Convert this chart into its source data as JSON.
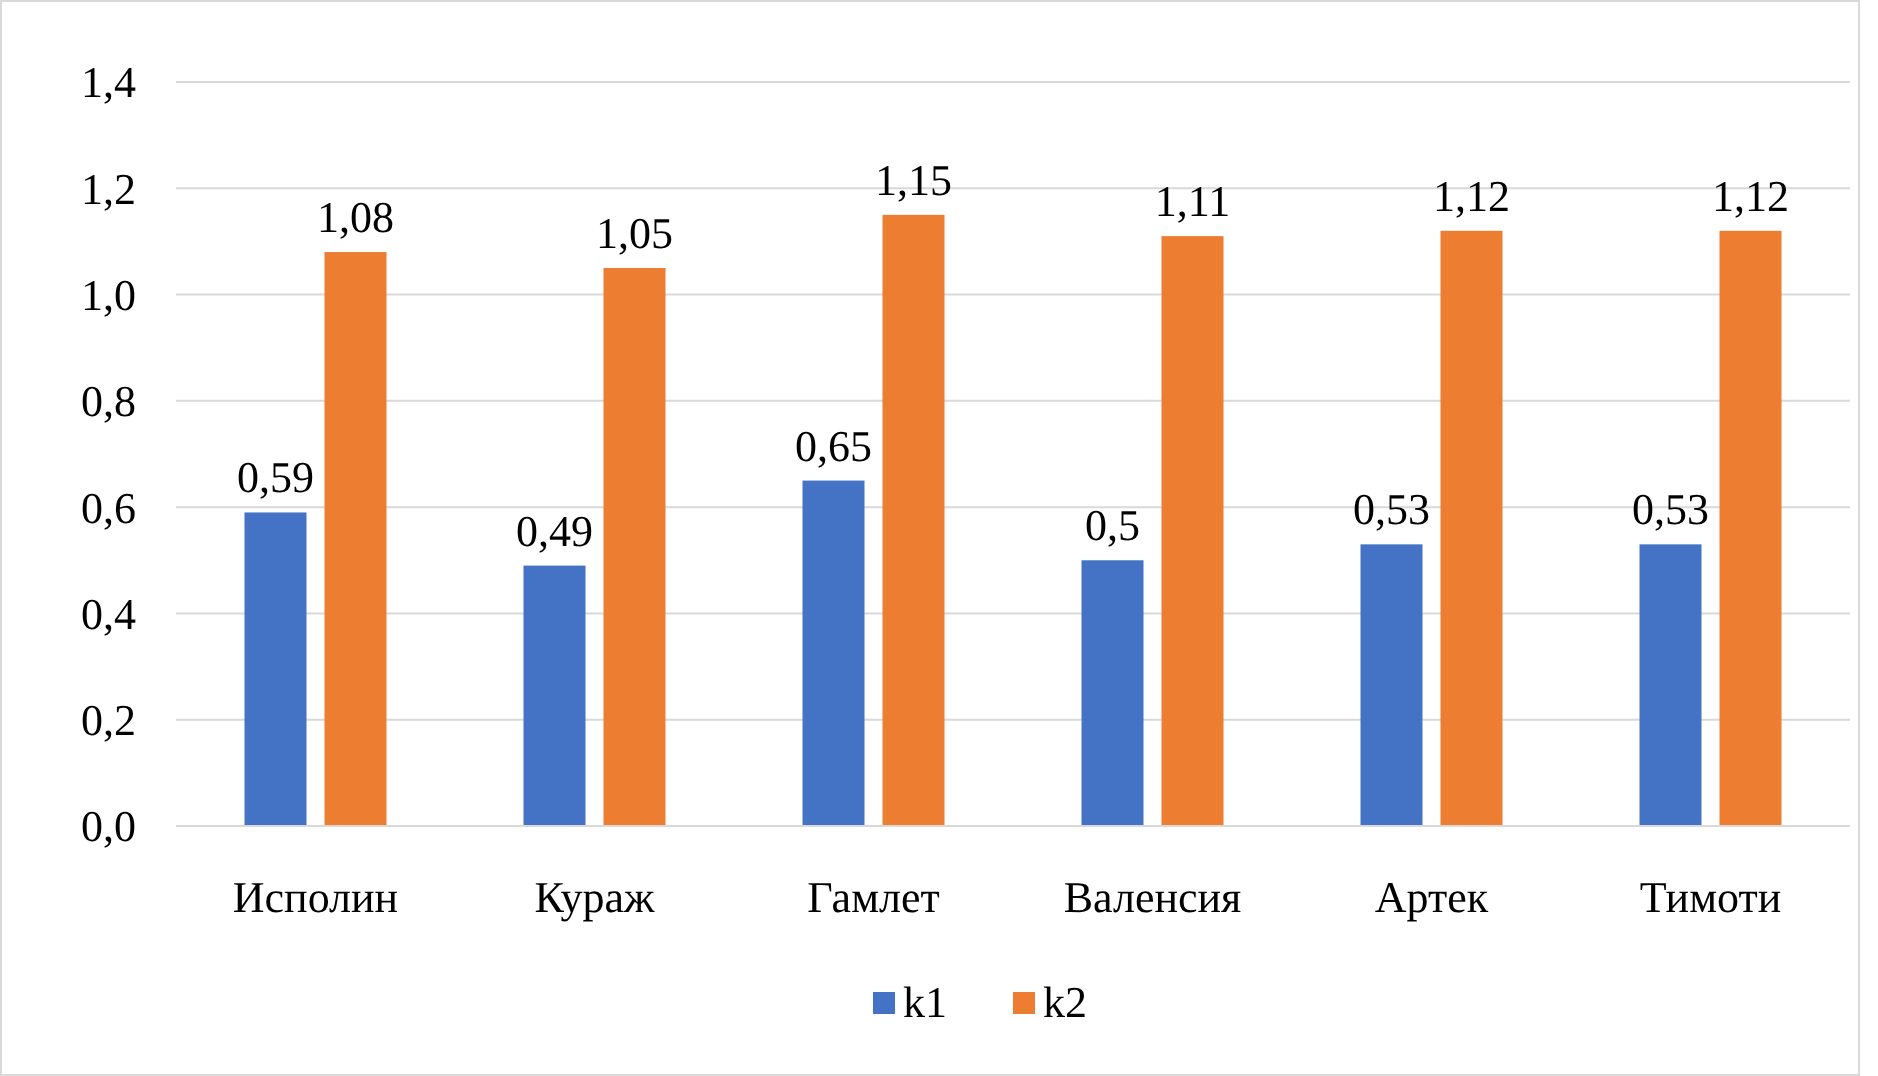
{
  "chart_data": {
    "type": "bar",
    "categories": [
      "Исполин",
      "Кураж",
      "Гамлет",
      "Валенсия",
      "Артек",
      "Тимоти"
    ],
    "series": [
      {
        "name": "k1",
        "color": "#4472c4",
        "values": [
          0.59,
          0.49,
          0.65,
          0.5,
          0.53,
          0.53
        ],
        "value_labels": [
          "0,59",
          "0,49",
          "0,65",
          "0,5",
          "0,53",
          "0,53"
        ]
      },
      {
        "name": "k2",
        "color": "#ed7d31",
        "values": [
          1.08,
          1.05,
          1.15,
          1.11,
          1.12,
          1.12
        ],
        "value_labels": [
          "1,08",
          "1,05",
          "1,15",
          "1,11",
          "1,12",
          "1,12"
        ]
      }
    ],
    "ylim": [
      0,
      1.4
    ],
    "yticks": [
      {
        "value": 0,
        "label": "0,0"
      },
      {
        "value": 0.2,
        "label": "0,2"
      },
      {
        "value": 0.4,
        "label": "0,4"
      },
      {
        "value": 0.6,
        "label": "0,6"
      },
      {
        "value": 0.8,
        "label": "0,8"
      },
      {
        "value": 1,
        "label": "1,0"
      },
      {
        "value": 1.2,
        "label": "1,2"
      },
      {
        "value": 1.4,
        "label": "1,4"
      }
    ],
    "grid": "y",
    "legend": "bottom"
  }
}
